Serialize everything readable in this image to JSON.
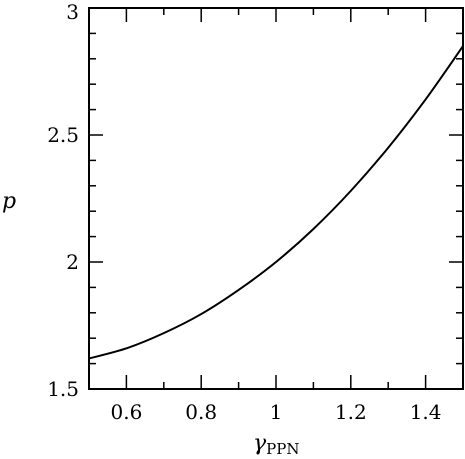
{
  "chart_data": {
    "type": "line",
    "title": "",
    "xlabel": "γ",
    "xlabel_sub": "PPN",
    "ylabel": "p",
    "xlim": [
      0.5,
      1.5
    ],
    "ylim": [
      1.5,
      3.0
    ],
    "xticks_major": [
      0.6,
      0.8,
      1.0,
      1.2,
      1.4
    ],
    "xtick_labels": [
      "0.6",
      "0.8",
      "1",
      "1.2",
      "1.4"
    ],
    "yticks_major": [
      1.5,
      2.0,
      2.5,
      3.0
    ],
    "ytick_labels": [
      "1.5",
      "2",
      "2.5",
      "3"
    ],
    "x_minor_step": 0.1,
    "y_minor_step": 0.1,
    "grid": false,
    "series": [
      {
        "x": [
          0.5,
          0.6,
          0.7,
          0.8,
          0.9,
          1.0,
          1.1,
          1.2,
          1.3,
          1.4,
          1.5
        ],
        "values": [
          1.62,
          1.66,
          1.72,
          1.795,
          1.89,
          2.0,
          2.13,
          2.28,
          2.45,
          2.64,
          2.85
        ],
        "color": "#000000"
      }
    ]
  }
}
